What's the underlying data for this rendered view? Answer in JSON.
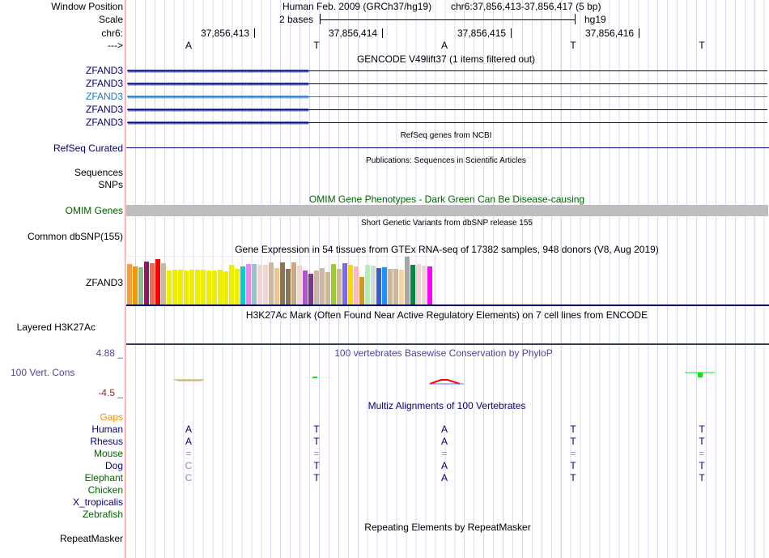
{
  "header": {
    "labels": [
      "Window Position",
      "Scale",
      "chr6:",
      "--->"
    ],
    "assembly": "Human Feb. 2009 (GRCh37/hg19)",
    "position": "chr6:37,856,413-37,856,417 (5 bp)",
    "scale_text": "2 bases",
    "scale_db": "hg19",
    "coords": [
      "37,856,413",
      "37,856,414",
      "37,856,415",
      "37,856,416"
    ],
    "bases": [
      "A",
      "T",
      "A",
      "T",
      "T"
    ]
  },
  "gencode": {
    "title": "GENCODE V49lift37 (1 items filtered out)",
    "genes": [
      "ZFAND3",
      "ZFAND3",
      "ZFAND3",
      "ZFAND3",
      "ZFAND3"
    ],
    "arrow": "›"
  },
  "refseq": {
    "title": "RefSeq genes from NCBI",
    "label": "RefSeq Curated"
  },
  "publications": {
    "title": "Publications: Sequences in Scientific Articles",
    "labels": [
      "Sequences",
      "SNPs"
    ]
  },
  "omim": {
    "title": "OMIM Gene Phenotypes - Dark Green Can Be Disease-causing",
    "label": "OMIM Genes"
  },
  "dbsnp": {
    "title": "Short Genetic Variants from dbSNP release 155",
    "label": "Common dbSNP(155)"
  },
  "gtex": {
    "title": "Gene Expression in 54 tissues from GTEx RNA-seq of 17382 samples, 948 donors (V8, Aug 2019)",
    "label": "ZFAND3",
    "relative_expression": [
      51,
      48,
      47,
      54,
      52,
      57,
      52,
      43,
      44,
      44,
      43,
      44,
      44,
      44,
      43,
      43,
      44,
      42,
      50,
      45,
      48,
      51,
      51,
      50,
      50,
      53,
      46,
      53,
      45,
      53,
      49,
      43,
      39,
      43,
      46,
      41,
      51,
      45,
      52,
      50,
      48,
      35,
      50,
      49,
      46,
      47,
      45,
      45,
      44,
      60,
      50,
      51,
      49,
      48
    ],
    "colors": [
      "#F89C3C",
      "#EE9900",
      "#8FBC8F",
      "#8B1C62",
      "#EE6A50",
      "#FF0000",
      "#CDB79E",
      "#EEEE00",
      "#EEEE00",
      "#EEEE00",
      "#EEEE00",
      "#EEEE00",
      "#EEEE00",
      "#EEEE00",
      "#EEEE00",
      "#EEEE00",
      "#EEEE00",
      "#EEEE00",
      "#EEEE00",
      "#EEEE00",
      "#00CDCD",
      "#EE82EE",
      "#9AC0CD",
      "#EED5D2",
      "#EED5D2",
      "#CDB79E",
      "#EEC591",
      "#8B7355",
      "#8B7355",
      "#CDAA7D",
      "#EED5D2",
      "#B452CD",
      "#7A378B",
      "#CDB79E",
      "#CDB79E",
      "#CDB79E",
      "#9ACD32",
      "#CDB79E",
      "#7B68EE",
      "#FFD700",
      "#FFB6C1",
      "#CD9B1D",
      "#B4EEB4",
      "#D9D9D9",
      "#3A5FCD",
      "#1E90FF",
      "#CDB79E",
      "#CDB79E",
      "#FFD39B",
      "#A6A6A6",
      "#008B45",
      "#EED5D2",
      "#EED5D2",
      "#FF00FF"
    ]
  },
  "h3k27ac": {
    "title": "H3K27Ac Mark (Often Found Near Active Regulatory Elements) on 7 cell lines from ENCODE",
    "label": "Layered H3K27Ac"
  },
  "cons": {
    "title": "100 vertebrates Basewise Conservation by PhyloP",
    "label": "100 Vert. Cons",
    "max": "4.88 _",
    "min": "-4.5 _"
  },
  "multiz": {
    "title": "Multiz Alignments of 100 Vertebrates",
    "rows": [
      {
        "name": "Gaps",
        "color": "#FF8C00",
        "bases": [
          "",
          "",
          "",
          "",
          ""
        ]
      },
      {
        "name": "Human",
        "color": "#000080",
        "bases": [
          "A",
          "T",
          "A",
          "T",
          "T"
        ]
      },
      {
        "name": "Rhesus",
        "color": "#000080",
        "bases": [
          "A",
          "T",
          "A",
          "T",
          "T"
        ]
      },
      {
        "name": "Mouse",
        "color": "#006400",
        "bases": [
          "=",
          "=",
          "=",
          "=",
          "="
        ]
      },
      {
        "name": "Dog",
        "color": "#000080",
        "bases": [
          "C",
          "T",
          "A",
          "T",
          "T"
        ]
      },
      {
        "name": "Elephant",
        "color": "#006400",
        "bases": [
          "C",
          "T",
          "A",
          "T",
          "T"
        ]
      },
      {
        "name": "Chicken",
        "color": "#006400",
        "bases": [
          "",
          "",
          "",
          "",
          ""
        ]
      },
      {
        "name": "X_tropicalis",
        "color": "#000080",
        "bases": [
          "",
          "",
          "",
          "",
          ""
        ]
      },
      {
        "name": "Zebrafish",
        "color": "#006400",
        "bases": [
          "",
          "",
          "",
          "",
          ""
        ]
      }
    ]
  },
  "repeatmasker": {
    "title": "Repeating Elements by RepeatMasker",
    "label": "RepeatMasker"
  }
}
